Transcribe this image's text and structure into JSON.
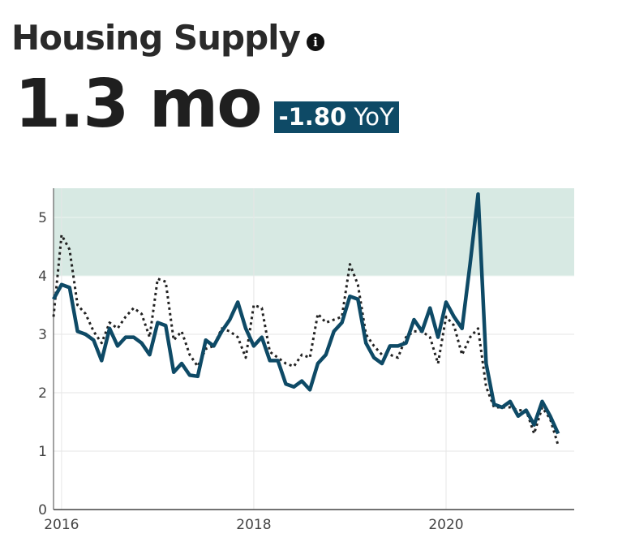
{
  "header": {
    "title": "Housing Supply",
    "info_icon": "info-circle-icon",
    "value": "1.3 mo",
    "yoy_value": "-1.80",
    "yoy_unit": "YoY"
  },
  "colors": {
    "primary_line": "#0e4a66",
    "secondary_line": "#222222",
    "band_fill": "#d7e9e3",
    "badge_bg": "#0e4a66"
  },
  "chart_data": {
    "type": "line",
    "x_ticks": [
      "2016",
      "2018",
      "2020"
    ],
    "y_ticks": [
      "0",
      "1",
      "2",
      "3",
      "4",
      "5"
    ],
    "ylim": [
      0,
      5.5
    ],
    "xlim": [
      "2015-12",
      "2021-05"
    ],
    "band": {
      "y_from": 4,
      "y_to": 5.5
    },
    "grid": true,
    "legend": "none",
    "x": [
      "2015-12",
      "2016-01",
      "2016-02",
      "2016-03",
      "2016-04",
      "2016-05",
      "2016-06",
      "2016-07",
      "2016-08",
      "2016-09",
      "2016-10",
      "2016-11",
      "2016-12",
      "2017-01",
      "2017-02",
      "2017-03",
      "2017-04",
      "2017-05",
      "2017-06",
      "2017-07",
      "2017-08",
      "2017-09",
      "2017-10",
      "2017-11",
      "2017-12",
      "2018-01",
      "2018-02",
      "2018-03",
      "2018-04",
      "2018-05",
      "2018-06",
      "2018-07",
      "2018-08",
      "2018-09",
      "2018-10",
      "2018-11",
      "2018-12",
      "2019-01",
      "2019-02",
      "2019-03",
      "2019-04",
      "2019-05",
      "2019-06",
      "2019-07",
      "2019-08",
      "2019-09",
      "2019-10",
      "2019-11",
      "2019-12",
      "2020-01",
      "2020-02",
      "2020-03",
      "2020-04",
      "2020-05",
      "2020-06",
      "2020-07",
      "2020-08",
      "2020-09",
      "2020-10",
      "2020-11",
      "2020-12",
      "2021-01",
      "2021-02",
      "2021-03"
    ],
    "series": [
      {
        "style": "solid",
        "values": [
          3.6,
          3.85,
          3.8,
          3.05,
          3.0,
          2.9,
          2.55,
          3.1,
          2.8,
          2.95,
          2.95,
          2.85,
          2.65,
          3.2,
          3.15,
          2.35,
          2.5,
          2.3,
          2.28,
          2.9,
          2.8,
          3.05,
          3.25,
          3.55,
          3.1,
          2.8,
          2.95,
          2.55,
          2.55,
          2.15,
          2.1,
          2.2,
          2.05,
          2.5,
          2.65,
          3.05,
          3.2,
          3.65,
          3.6,
          2.85,
          2.6,
          2.5,
          2.8,
          2.8,
          2.85,
          3.25,
          3.05,
          3.45,
          2.95,
          3.55,
          3.3,
          3.1,
          4.2,
          5.4,
          2.5,
          1.8,
          1.75,
          1.85,
          1.6,
          1.7,
          1.45,
          1.85,
          1.6,
          1.3
        ]
      },
      {
        "style": "dotted",
        "values": [
          3.3,
          4.7,
          4.45,
          3.5,
          3.35,
          3.05,
          2.85,
          3.2,
          3.1,
          3.3,
          3.45,
          3.35,
          2.95,
          3.95,
          3.9,
          2.9,
          3.05,
          2.65,
          2.45,
          2.75,
          2.8,
          3.1,
          3.05,
          2.95,
          2.6,
          3.5,
          3.45,
          2.7,
          2.6,
          2.5,
          2.45,
          2.65,
          2.6,
          3.35,
          3.2,
          3.25,
          3.3,
          4.2,
          3.85,
          3.0,
          2.8,
          2.65,
          2.65,
          2.6,
          2.95,
          3.05,
          3.05,
          2.95,
          2.5,
          3.3,
          3.15,
          2.65,
          2.95,
          3.1,
          2.1,
          1.75,
          1.75,
          1.75,
          1.7,
          1.7,
          1.3,
          1.75,
          1.55,
          1.1
        ]
      }
    ]
  }
}
